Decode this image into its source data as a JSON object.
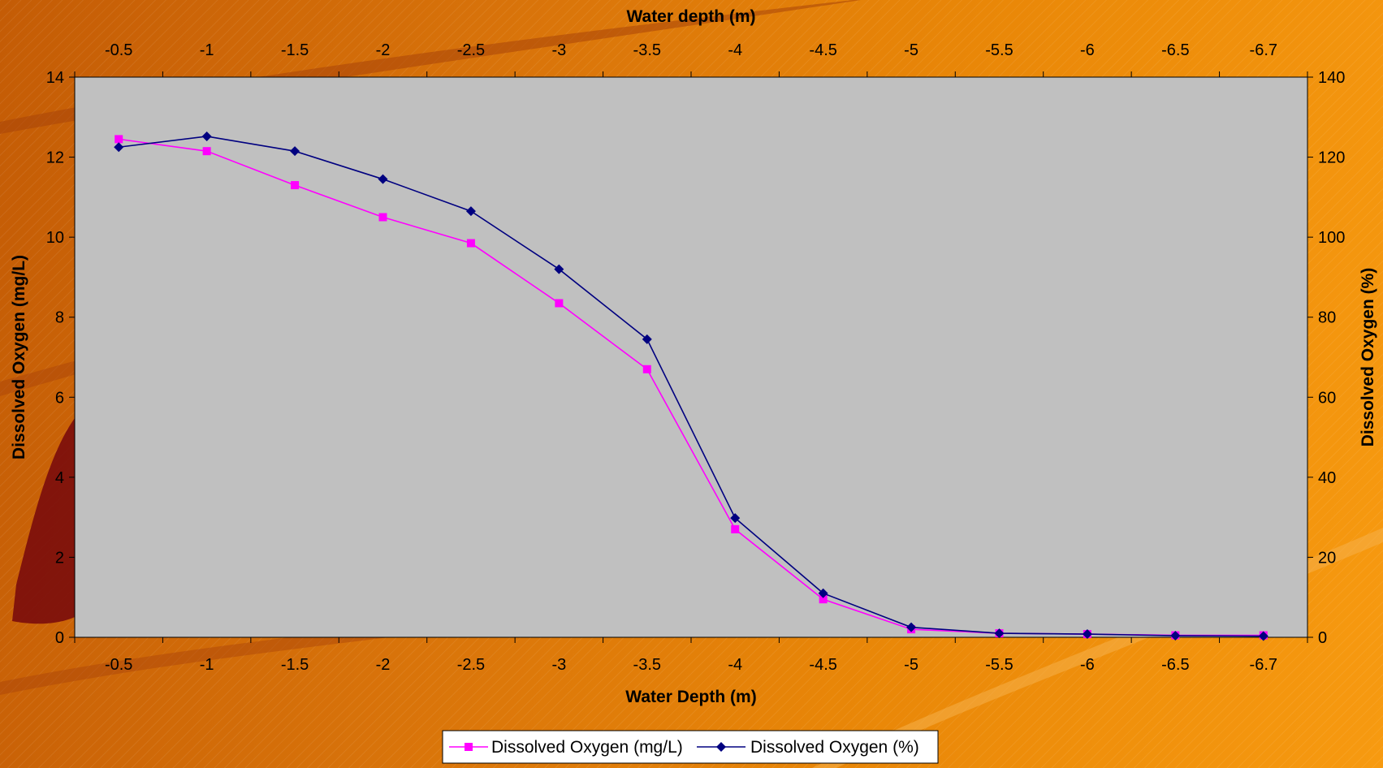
{
  "chart_data": {
    "type": "line",
    "categories": [
      "-0.5",
      "-1",
      "-1.5",
      "-2",
      "-2.5",
      "-3",
      "-3.5",
      "-4",
      "-4.5",
      "-5",
      "-5.5",
      "-6",
      "-6.5",
      "-6.7"
    ],
    "xlabel_top": "Water depth (m)",
    "xlabel_bottom": "Water Depth (m)",
    "ylabel_left": "Dissolved Oxygen (mg/L)",
    "ylabel_right": "Dissolved Oxygen (%)",
    "ylim_left": [
      0,
      14
    ],
    "ylim_right": [
      0,
      140
    ],
    "yticks_left": [
      "0",
      "2",
      "4",
      "6",
      "8",
      "10",
      "12",
      "14"
    ],
    "yticks_right": [
      "0",
      "20",
      "40",
      "60",
      "80",
      "100",
      "120",
      "140"
    ],
    "grid": false,
    "legend_position": "bottom",
    "series": [
      {
        "name": "Dissolved Oxygen (mg/L)",
        "axis": "left",
        "color": "#ff00ff",
        "marker": "square",
        "values": [
          12.45,
          12.15,
          11.3,
          10.5,
          9.85,
          8.35,
          6.7,
          2.7,
          0.95,
          0.2,
          0.1,
          0.08,
          0.05,
          0.05
        ]
      },
      {
        "name": "Dissolved Oxygen (%)",
        "axis": "right",
        "color": "#000080",
        "marker": "diamond",
        "values": [
          122.5,
          125.2,
          121.5,
          114.5,
          106.5,
          92.0,
          74.5,
          29.8,
          11.0,
          2.5,
          1.0,
          0.8,
          0.4,
          0.3
        ]
      }
    ],
    "plot_background": "#c0c0c0"
  }
}
